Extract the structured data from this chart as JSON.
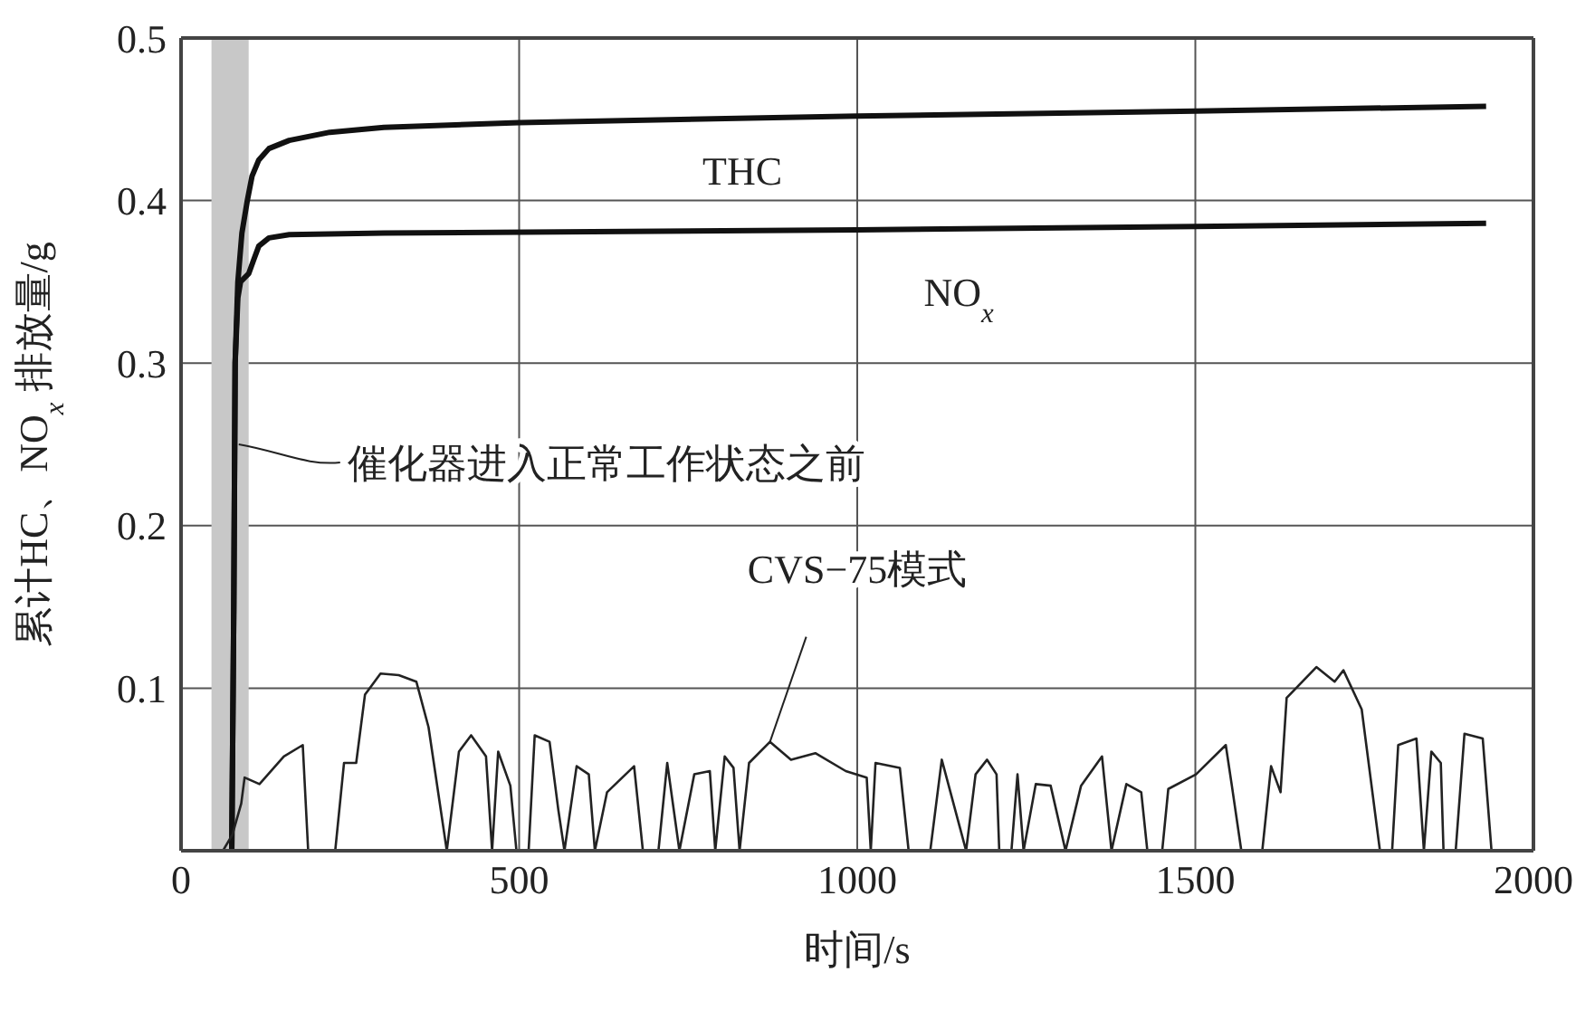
{
  "chart_data": {
    "type": "line",
    "xlabel": "时间/s",
    "ylabel": "累计HC、NO$_{x}$ 排放量/g",
    "xlim": [
      0,
      2000
    ],
    "xticks": [
      0,
      500,
      1000,
      1500,
      2000
    ],
    "ylim": [
      0,
      0.5
    ],
    "yticks": [
      {
        "value": 0,
        "label": null
      },
      0.1,
      0.2,
      0.3,
      0.4,
      0.5
    ],
    "grid": true,
    "line_style": "solid",
    "marker": "none",
    "bands": [
      {
        "axis": "x",
        "from": 45,
        "to": 100,
        "color": "#c8c8c8"
      }
    ],
    "annotations": [
      {
        "text": "催化器进入正常工作状态之前",
        "x": 80,
        "y": 0.25
      }
    ],
    "series": [
      {
        "name": "THC",
        "color": "#111111",
        "x": [
          75,
          78,
          80,
          84,
          90,
          98,
          105,
          115,
          130,
          160,
          220,
          300,
          500,
          1000,
          1500,
          1930
        ],
        "values": [
          0,
          0.15,
          0.3,
          0.35,
          0.38,
          0.4,
          0.415,
          0.425,
          0.432,
          0.437,
          0.442,
          0.445,
          0.448,
          0.452,
          0.455,
          0.458
        ]
      },
      {
        "name": "NO$_{x}$",
        "color": "#111111",
        "x": [
          75,
          78,
          80,
          84,
          88,
          100,
          107,
          115,
          130,
          160,
          300,
          1000,
          1500,
          1930
        ],
        "values": [
          0,
          0.15,
          0.3,
          0.34,
          0.35,
          0.355,
          0.363,
          0.372,
          0.377,
          0.379,
          0.38,
          0.382,
          0.384,
          0.386
        ]
      },
      {
        "name": "CVS−75模式",
        "color": "#222222",
        "x": [
          62,
          76,
          89,
          94,
          116,
          152,
          180,
          188,
          228,
          241,
          259,
          272,
          295,
          322,
          348,
          366,
          393,
          411,
          429,
          451,
          460,
          469,
          487,
          496,
          514,
          523,
          545,
          558,
          567,
          585,
          603,
          612,
          630,
          670,
          683,
          706,
          719,
          737,
          759,
          782,
          790,
          804,
          817,
          826,
          840,
          871,
          902,
          938,
          983,
          1014,
          1020,
          1027,
          1063,
          1076,
          1108,
          1125,
          1152,
          1161,
          1175,
          1192,
          1206,
          1210,
          1228,
          1237,
          1246,
          1264,
          1286,
          1308,
          1331,
          1362,
          1376,
          1398,
          1420,
          1429,
          1451,
          1460,
          1501,
          1545,
          1554,
          1568,
          1599,
          1612,
          1626,
          1635,
          1679,
          1706,
          1719,
          1746,
          1773,
          1791,
          1800,
          1827,
          1838,
          1849,
          1863,
          1867,
          1885,
          1898,
          1925,
          1938
        ],
        "values": [
          0,
          0.01,
          0.029,
          0.045,
          0.041,
          0.058,
          0.065,
          0,
          0,
          0.054,
          0.054,
          0.096,
          0.109,
          0.108,
          0.104,
          0.076,
          0,
          0.061,
          0.071,
          0.058,
          0,
          0.061,
          0.04,
          0,
          0,
          0.071,
          0.067,
          0.025,
          0,
          0.052,
          0.047,
          0,
          0.036,
          0.052,
          0,
          0,
          0.054,
          0,
          0.047,
          0.049,
          0,
          0.058,
          0.051,
          0,
          0.054,
          0.067,
          0.056,
          0.06,
          0.049,
          0.045,
          0,
          0.054,
          0.051,
          0,
          0,
          0.056,
          0.014,
          0,
          0.047,
          0.056,
          0.047,
          0,
          0,
          0.047,
          0,
          0.041,
          0.04,
          0,
          0.04,
          0.058,
          0,
          0.041,
          0.036,
          0,
          0,
          0.038,
          0.047,
          0.065,
          0.04,
          0,
          0,
          0.052,
          0.036,
          0.094,
          0.113,
          0.104,
          0.111,
          0.087,
          0,
          0,
          0.065,
          0.069,
          0,
          0.061,
          0.054,
          0,
          0,
          0.072,
          0.069,
          0
        ]
      }
    ]
  }
}
